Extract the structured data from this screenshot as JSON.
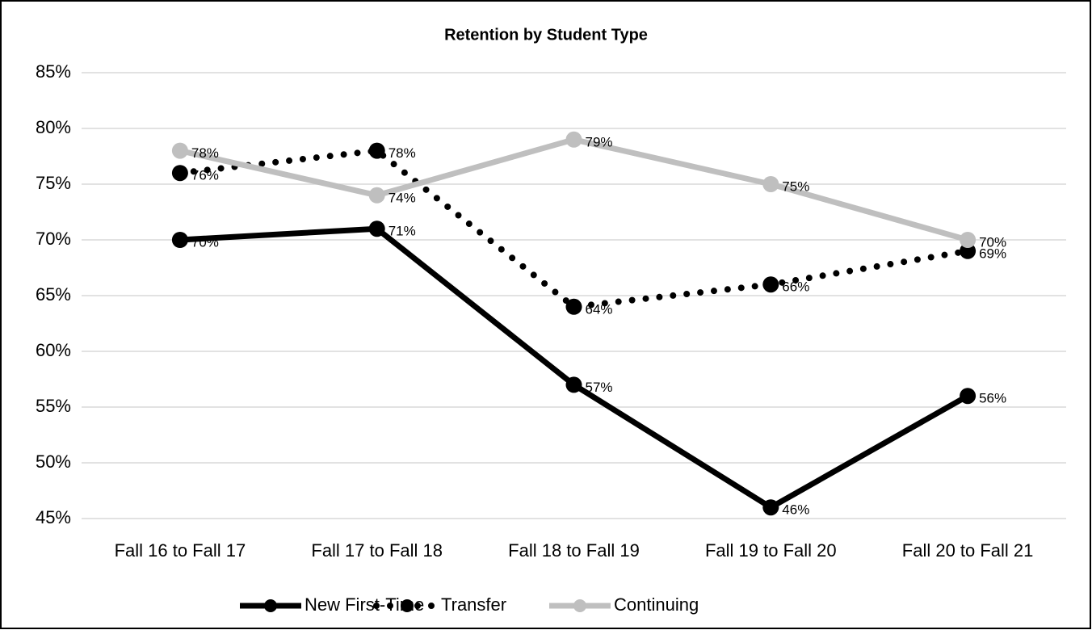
{
  "chart_data": {
    "type": "line",
    "title": "Retention by Student Type",
    "categories": [
      "Fall 16 to Fall 17",
      "Fall 17 to Fall 18",
      "Fall 18 to Fall 19",
      "Fall 19 to Fall 20",
      "Fall 20 to Fall 21"
    ],
    "series": [
      {
        "name": "New First-Time",
        "color": "#000000",
        "style": "solid",
        "values": [
          70,
          71,
          57,
          46,
          56
        ],
        "value_labels": [
          "70%",
          "71%",
          "57%",
          "46%",
          "56%"
        ]
      },
      {
        "name": "Transfer",
        "color": "#000000",
        "style": "dotted",
        "values": [
          76,
          78,
          64,
          66,
          69
        ],
        "value_labels": [
          "76%",
          "78%",
          "64%",
          "66%",
          "69%"
        ]
      },
      {
        "name": "Continuing",
        "color": "#bfbfbf",
        "style": "solid",
        "values": [
          78,
          74,
          79,
          75,
          70
        ],
        "value_labels": [
          "78%",
          "74%",
          "79%",
          "75%",
          "70%"
        ]
      }
    ],
    "ylim": [
      45,
      85
    ],
    "yticks": [
      {
        "value": 45,
        "label": "45%"
      },
      {
        "value": 50,
        "label": "50%"
      },
      {
        "value": 55,
        "label": "55%"
      },
      {
        "value": 60,
        "label": "60%"
      },
      {
        "value": 65,
        "label": "65%"
      },
      {
        "value": 70,
        "label": "70%"
      },
      {
        "value": 75,
        "label": "75%"
      },
      {
        "value": 80,
        "label": "80%"
      },
      {
        "value": 85,
        "label": "85%"
      }
    ],
    "grid": true,
    "legend": "bottom"
  }
}
